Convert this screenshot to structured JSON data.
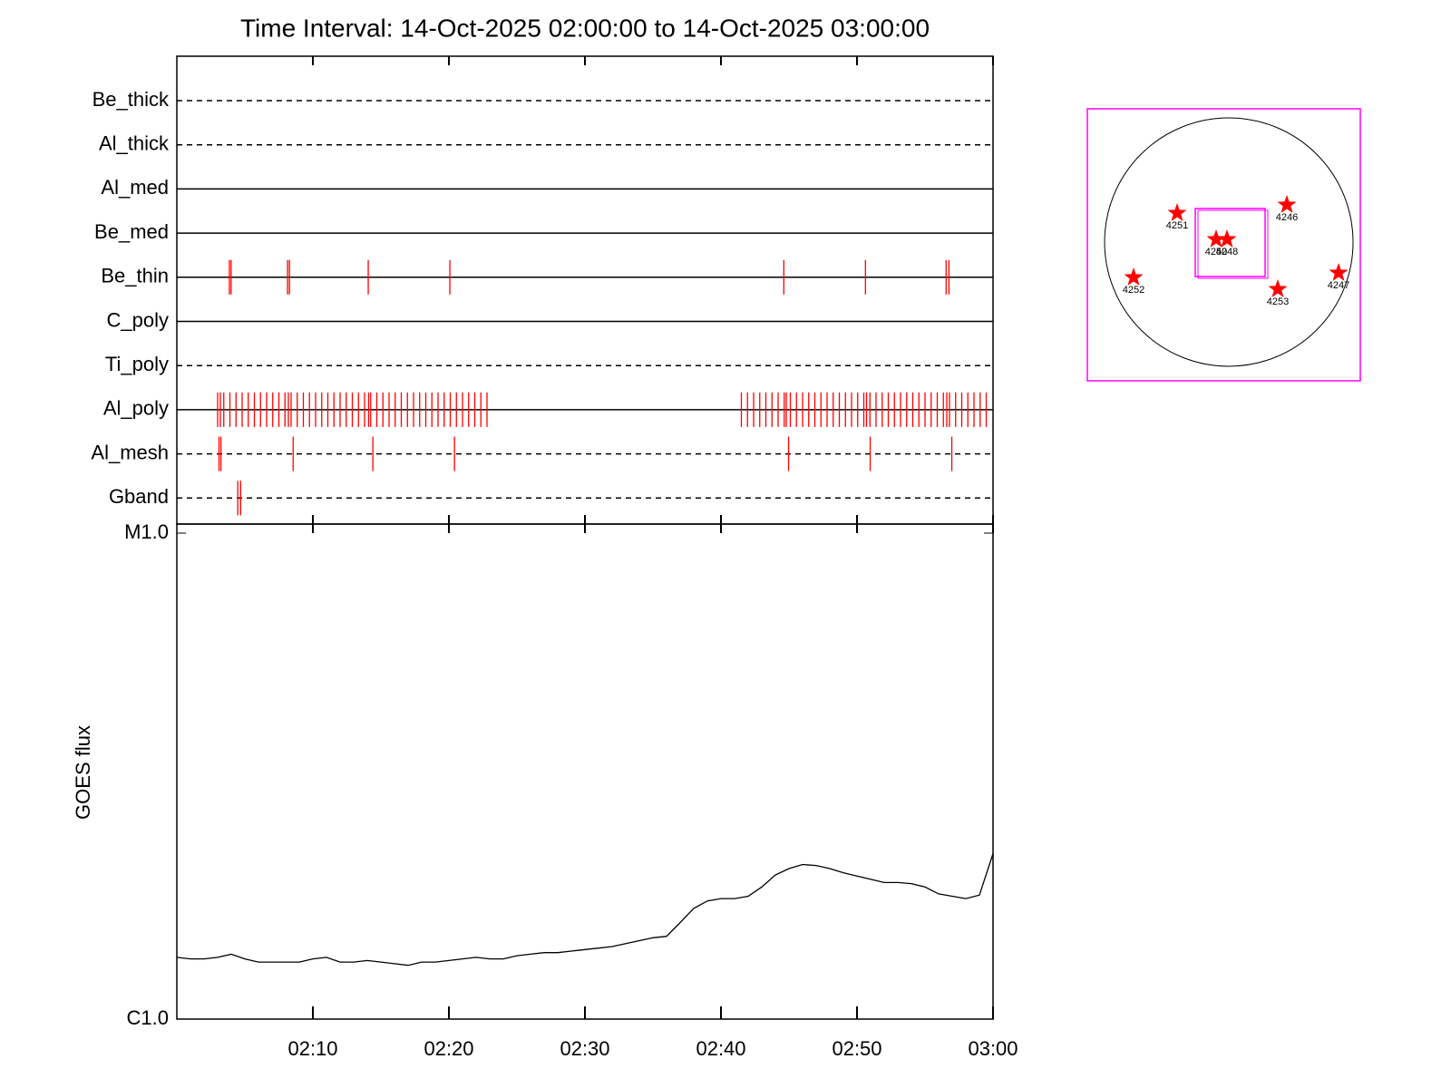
{
  "chart_data": [
    {
      "type": "events",
      "title": "Time Interval: 14-Oct-2025 02:00:00 to 14-Oct-2025 03:00:00",
      "categories": [
        "Be_thick",
        "Al_thick",
        "Al_med",
        "Be_med",
        "Be_thin",
        "C_poly",
        "Ti_poly",
        "Al_poly",
        "Al_mesh",
        "Gband"
      ],
      "line_styles": [
        "dashed",
        "dashed",
        "solid",
        "solid",
        "solid",
        "solid",
        "dashed",
        "solid",
        "dashed",
        "dashed"
      ],
      "color": "#ff0000",
      "xlim": [
        0,
        60
      ],
      "events": [
        [],
        [],
        [],
        [],
        [
          3.86,
          3.99,
          8.14,
          8.28,
          14.07,
          20.07,
          44.62,
          50.62,
          56.55,
          56.76
        ],
        [],
        [],
        [
          3.0,
          3.2,
          3.45,
          3.9,
          4.35,
          4.8,
          5.25,
          5.7,
          6.15,
          6.6,
          7.05,
          7.5,
          7.95,
          8.2,
          8.4,
          8.85,
          9.3,
          9.75,
          10.2,
          10.65,
          11.1,
          11.55,
          12.0,
          12.45,
          12.9,
          13.35,
          13.8,
          14.1,
          14.25,
          14.7,
          15.15,
          15.6,
          16.05,
          16.5,
          16.95,
          17.4,
          17.85,
          18.3,
          18.75,
          19.2,
          19.65,
          20.1,
          20.55,
          21.0,
          21.45,
          21.9,
          22.35,
          22.8,
          41.5,
          41.95,
          42.4,
          42.85,
          43.3,
          43.75,
          44.2,
          44.65,
          44.8,
          45.1,
          45.55,
          46.0,
          46.45,
          46.9,
          47.35,
          47.8,
          48.25,
          48.7,
          49.15,
          49.6,
          50.05,
          50.5,
          50.7,
          50.95,
          51.4,
          51.85,
          52.3,
          52.75,
          53.2,
          53.65,
          54.1,
          54.55,
          55.0,
          55.45,
          55.9,
          56.35,
          56.6,
          56.8,
          57.25,
          57.7,
          58.15,
          58.6,
          59.05,
          59.5
        ],
        [
          3.1,
          3.24,
          8.55,
          14.41,
          20.41,
          44.97,
          50.97,
          56.97
        ],
        [
          4.48,
          4.69
        ]
      ]
    },
    {
      "type": "line",
      "ylabel": "GOES flux",
      "color": "#000000",
      "log_y": true,
      "xlim": [
        0,
        60
      ],
      "xticks": [
        {
          "value": 10,
          "label": "02:10"
        },
        {
          "value": 20,
          "label": "02:20"
        },
        {
          "value": 30,
          "label": "02:30"
        },
        {
          "value": 40,
          "label": "02:40"
        },
        {
          "value": 50,
          "label": "02:50"
        },
        {
          "value": 60,
          "label": "03:00"
        }
      ],
      "ylim": [
        1e-06,
        1e-05
      ],
      "yticks": [
        {
          "value": 1e-06,
          "label": "C1.0"
        },
        {
          "value": 1e-05,
          "label": "M1.0"
        }
      ],
      "x": [
        0,
        1,
        2,
        3,
        4,
        5,
        6,
        7,
        8,
        9,
        10,
        11,
        12,
        13,
        14,
        15,
        16,
        17,
        18,
        19,
        20,
        21,
        22,
        23,
        24,
        25,
        26,
        27,
        28,
        29,
        30,
        31,
        32,
        33,
        34,
        35,
        36,
        37,
        38,
        39,
        40,
        41,
        42,
        43,
        44,
        45,
        46,
        47,
        48,
        49,
        50,
        51,
        52,
        53,
        54,
        55,
        56,
        57,
        58,
        59,
        60
      ],
      "values": [
        1.34e-06,
        1.33e-06,
        1.33e-06,
        1.34e-06,
        1.36e-06,
        1.33e-06,
        1.31e-06,
        1.31e-06,
        1.31e-06,
        1.31e-06,
        1.33e-06,
        1.34e-06,
        1.31e-06,
        1.31e-06,
        1.32e-06,
        1.31e-06,
        1.3e-06,
        1.29e-06,
        1.31e-06,
        1.31e-06,
        1.32e-06,
        1.33e-06,
        1.34e-06,
        1.33e-06,
        1.33e-06,
        1.35e-06,
        1.36e-06,
        1.37e-06,
        1.37e-06,
        1.38e-06,
        1.39e-06,
        1.4e-06,
        1.41e-06,
        1.43e-06,
        1.45e-06,
        1.47e-06,
        1.48e-06,
        1.58e-06,
        1.69e-06,
        1.75e-06,
        1.77e-06,
        1.77e-06,
        1.79e-06,
        1.87e-06,
        1.98e-06,
        2.04e-06,
        2.08e-06,
        2.07e-06,
        2.04e-06,
        2e-06,
        1.97e-06,
        1.94e-06,
        1.91e-06,
        1.91e-06,
        1.9e-06,
        1.87e-06,
        1.81e-06,
        1.79e-06,
        1.77e-06,
        1.8e-06,
        2.19e-06
      ]
    },
    {
      "type": "map",
      "regions": [
        "4251",
        "4246",
        "4250",
        "4248",
        "4252",
        "4253",
        "4247"
      ],
      "color": "#ff0000",
      "frame_color": "#ff00ff"
    }
  ]
}
